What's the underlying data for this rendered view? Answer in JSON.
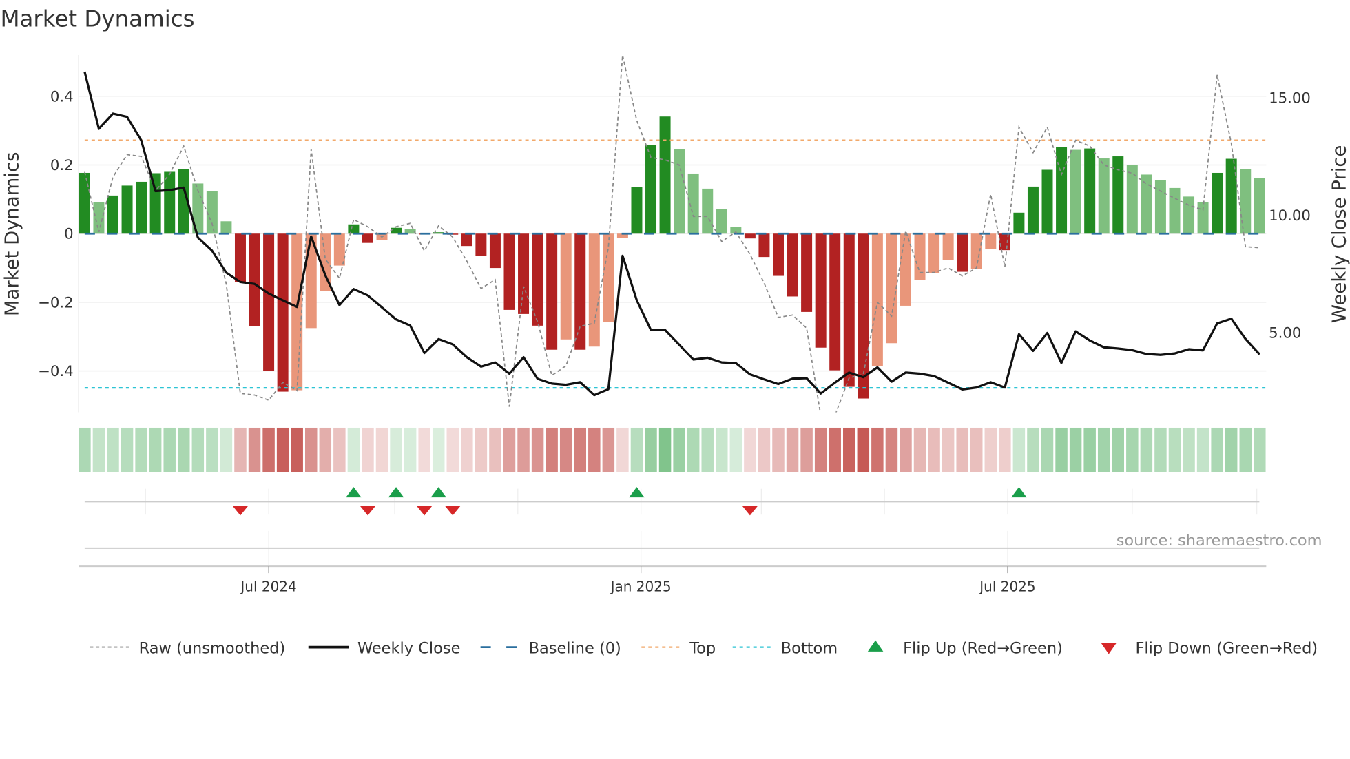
{
  "title": "Market Dynamics",
  "source": "source: sharemaestro.com",
  "colors": {
    "dark_green": "#228b22",
    "light_green": "#7fbf7f",
    "dark_red": "#b22222",
    "light_red": "#e9967a",
    "heat_green": "#5cb36b",
    "heat_red": "#c65a55",
    "baseline": "#2a6f9e",
    "top": "#f2a96b",
    "bottom": "#2cc4d4",
    "raw": "#888888",
    "close": "#111111",
    "flip_up": "#1a9e4a",
    "flip_down": "#d62728",
    "grid": "#ececec"
  },
  "legend": {
    "placement": "bottom",
    "items": [
      {
        "key": "raw",
        "label": "Raw (unsmoothed)"
      },
      {
        "key": "close",
        "label": "Weekly Close"
      },
      {
        "key": "baseline",
        "label": "Baseline (0)"
      },
      {
        "key": "top",
        "label": "Top"
      },
      {
        "key": "bottom",
        "label": "Bottom"
      },
      {
        "key": "flip_up",
        "label": "Flip Up (Red→Green)"
      },
      {
        "key": "flip_down",
        "label": "Flip Down (Green→Red)"
      }
    ]
  },
  "chart_data": {
    "type": "bar",
    "title": "Market Dynamics",
    "xlabel": "",
    "ylabel": "Market Dynamics",
    "ylabel_right": "Weekly Close Price",
    "ylim": [
      -0.52,
      0.52
    ],
    "ylim_right": [
      1.58,
      16.78
    ],
    "grid": true,
    "yticks": [
      {
        "value": 0.4,
        "label": "0.4"
      },
      {
        "value": 0.2,
        "label": "0.2"
      },
      {
        "value": 0,
        "label": "0"
      },
      {
        "value": -0.2,
        "label": "−0.2"
      },
      {
        "value": -0.4,
        "label": "−0.4"
      }
    ],
    "yticks_right": [
      {
        "value": 15,
        "label": "15.00"
      },
      {
        "value": 10,
        "label": "10.00"
      },
      {
        "value": 5,
        "label": "5.00"
      }
    ],
    "xticks": [
      {
        "pos": 13.0,
        "label": "Jul 2024"
      },
      {
        "pos": 39.3,
        "label": "Jan 2025"
      },
      {
        "pos": 65.2,
        "label": "Jul 2025"
      }
    ],
    "minor_xgrid": [
      4.3,
      21.9,
      30.6,
      47.8,
      56.5,
      74.0,
      82.8
    ],
    "baseline": 0,
    "top": 0.272,
    "bottom": -0.449,
    "series": [
      {
        "name": "Market Dynamics",
        "type": "bar",
        "values": [
          0.177,
          0.092,
          0.111,
          0.14,
          0.151,
          0.176,
          0.18,
          0.187,
          0.146,
          0.124,
          0.036,
          -0.14,
          -0.27,
          -0.4,
          -0.46,
          -0.456,
          -0.275,
          -0.167,
          -0.093,
          0.027,
          -0.027,
          -0.019,
          0.017,
          0.014,
          -0.002,
          0.004,
          -0.003,
          -0.036,
          -0.064,
          -0.1,
          -0.222,
          -0.234,
          -0.268,
          -0.338,
          -0.308,
          -0.338,
          -0.329,
          -0.257,
          -0.013,
          0.136,
          0.259,
          0.341,
          0.246,
          0.175,
          0.131,
          0.071,
          0.019,
          -0.014,
          -0.068,
          -0.123,
          -0.183,
          -0.228,
          -0.332,
          -0.398,
          -0.446,
          -0.48,
          -0.385,
          -0.319,
          -0.21,
          -0.135,
          -0.114,
          -0.077,
          -0.111,
          -0.102,
          -0.045,
          -0.048,
          0.061,
          0.137,
          0.186,
          0.253,
          0.244,
          0.248,
          0.219,
          0.225,
          0.2,
          0.172,
          0.155,
          0.133,
          0.108,
          0.091,
          0.177,
          0.218,
          0.188,
          0.162
        ]
      },
      {
        "name": "Raw (unsmoothed)",
        "type": "line",
        "values": [
          0.18,
          0.005,
          0.165,
          0.23,
          0.225,
          0.125,
          0.173,
          0.255,
          0.125,
          0.03,
          -0.146,
          -0.465,
          -0.47,
          -0.485,
          -0.433,
          -0.457,
          0.246,
          -0.074,
          -0.13,
          0.041,
          0.02,
          -0.01,
          0.02,
          0.03,
          -0.05,
          0.023,
          -0.01,
          -0.08,
          -0.16,
          -0.134,
          -0.504,
          -0.154,
          -0.257,
          -0.413,
          -0.385,
          -0.27,
          -0.261,
          -0.04,
          0.52,
          0.33,
          0.222,
          0.215,
          0.2,
          0.05,
          0.05,
          -0.023,
          0.005,
          -0.06,
          -0.144,
          -0.244,
          -0.237,
          -0.275,
          -0.53,
          -0.53,
          -0.42,
          -0.41,
          -0.2,
          -0.24,
          0.008,
          -0.113,
          -0.113,
          -0.1,
          -0.123,
          -0.1,
          0.115,
          -0.097,
          0.31,
          0.236,
          0.31,
          0.172,
          0.272,
          0.255,
          0.2,
          0.186,
          0.176,
          0.145,
          0.124,
          0.103,
          0.083,
          0.069,
          0.462,
          0.262,
          -0.038,
          -0.041
        ]
      },
      {
        "name": "Weekly Close",
        "type": "line",
        "axis": "right",
        "values": [
          16.07,
          13.64,
          14.29,
          14.15,
          13.15,
          10.99,
          11.03,
          11.14,
          9.01,
          8.46,
          7.52,
          7.12,
          7.04,
          6.63,
          6.34,
          6.06,
          9.06,
          7.41,
          6.14,
          6.82,
          6.55,
          6.04,
          5.53,
          5.27,
          4.1,
          4.69,
          4.47,
          3.92,
          3.52,
          3.7,
          3.22,
          3.92,
          3.0,
          2.8,
          2.75,
          2.86,
          2.31,
          2.56,
          8.24,
          6.35,
          5.08,
          5.08,
          4.45,
          3.82,
          3.9,
          3.7,
          3.67,
          3.19,
          2.98,
          2.78,
          3.01,
          3.03,
          2.38,
          2.84,
          3.27,
          3.07,
          3.49,
          2.88,
          3.27,
          3.22,
          3.12,
          2.84,
          2.55,
          2.63,
          2.86,
          2.63,
          4.9,
          4.19,
          4.95,
          3.68,
          5.02,
          4.63,
          4.34,
          4.29,
          4.22,
          4.06,
          4.02,
          4.08,
          4.26,
          4.21,
          5.36,
          5.56,
          4.7,
          4.04
        ]
      }
    ],
    "flip_up": [
      19,
      22,
      25,
      39,
      66
    ],
    "flip_down": [
      11,
      20,
      24,
      26,
      47
    ]
  }
}
